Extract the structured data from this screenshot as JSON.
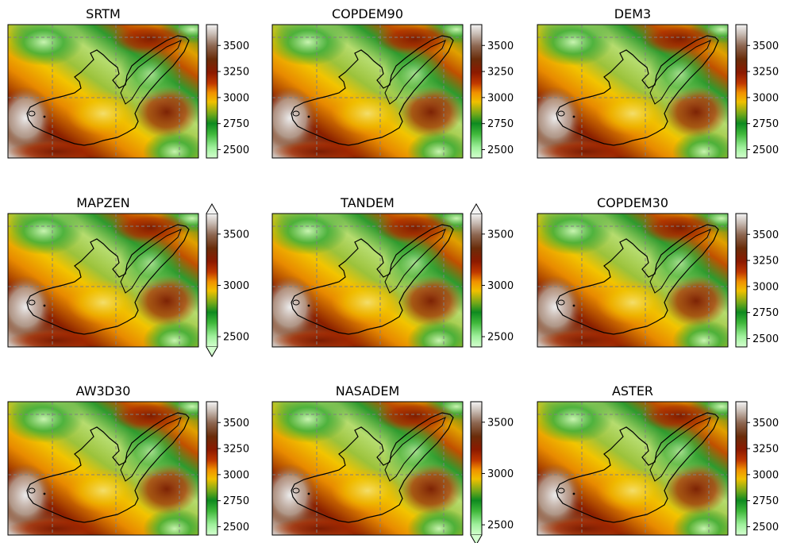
{
  "figure": {
    "colormap": "terrain-like (light green → green → yellow → orange → dark red → brown → white)",
    "outline_color": "#000000",
    "grid_color": "#808080",
    "grid_style": "dashed"
  },
  "chart_data": [
    {
      "type": "heatmap",
      "title": "SRTM",
      "colorbar": {
        "ticks": [
          2500,
          2750,
          3000,
          3250,
          3500
        ],
        "tick_labels": [
          "2500",
          "2750",
          "3000",
          "3250",
          "3500"
        ],
        "vmin": 2420,
        "vmax": 3700,
        "extend": "neither"
      }
    },
    {
      "type": "heatmap",
      "title": "COPDEM90",
      "colorbar": {
        "ticks": [
          2500,
          2750,
          3000,
          3250,
          3500
        ],
        "tick_labels": [
          "2500",
          "2750",
          "3000",
          "3250",
          "3500"
        ],
        "vmin": 2420,
        "vmax": 3700,
        "extend": "neither"
      }
    },
    {
      "type": "heatmap",
      "title": "DEM3",
      "colorbar": {
        "ticks": [
          2500,
          2750,
          3000,
          3250,
          3500
        ],
        "tick_labels": [
          "2500",
          "2750",
          "3000",
          "3250",
          "3500"
        ],
        "vmin": 2420,
        "vmax": 3700,
        "extend": "neither"
      }
    },
    {
      "type": "heatmap",
      "title": "MAPZEN",
      "colorbar": {
        "ticks": [
          2500,
          3000,
          3500
        ],
        "tick_labels": [
          "2500",
          "3000",
          "3500"
        ],
        "vmin": 2400,
        "vmax": 3700,
        "extend": "both"
      }
    },
    {
      "type": "heatmap",
      "title": "TANDEM",
      "colorbar": {
        "ticks": [
          2500,
          3000,
          3500
        ],
        "tick_labels": [
          "2500",
          "3000",
          "3500"
        ],
        "vmin": 2400,
        "vmax": 3700,
        "extend": "max"
      }
    },
    {
      "type": "heatmap",
      "title": "COPDEM30",
      "colorbar": {
        "ticks": [
          2500,
          2750,
          3000,
          3250,
          3500
        ],
        "tick_labels": [
          "2500",
          "2750",
          "3000",
          "3250",
          "3500"
        ],
        "vmin": 2420,
        "vmax": 3700,
        "extend": "neither"
      }
    },
    {
      "type": "heatmap",
      "title": "AW3D30",
      "colorbar": {
        "ticks": [
          2500,
          2750,
          3000,
          3250,
          3500
        ],
        "tick_labels": [
          "2500",
          "2750",
          "3000",
          "3250",
          "3500"
        ],
        "vmin": 2420,
        "vmax": 3700,
        "extend": "neither"
      }
    },
    {
      "type": "heatmap",
      "title": "NASADEM",
      "colorbar": {
        "ticks": [
          2500,
          3000,
          3500
        ],
        "tick_labels": [
          "2500",
          "3000",
          "3500"
        ],
        "vmin": 2400,
        "vmax": 3700,
        "extend": "min"
      }
    },
    {
      "type": "heatmap",
      "title": "ASTER",
      "colorbar": {
        "ticks": [
          2500,
          2750,
          3000,
          3250,
          3500
        ],
        "tick_labels": [
          "2500",
          "2750",
          "3000",
          "3250",
          "3500"
        ],
        "vmin": 2420,
        "vmax": 3700,
        "extend": "neither"
      }
    }
  ]
}
